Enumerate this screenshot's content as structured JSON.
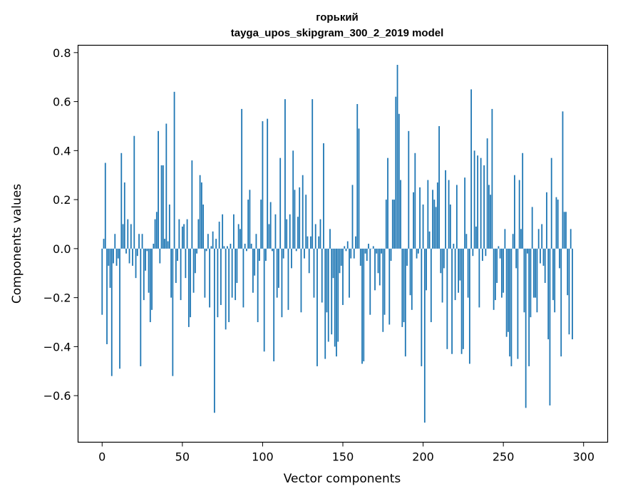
{
  "chart_data": {
    "type": "bar",
    "title": "горький",
    "subtitle": "tayga_upos_skipgram_300_2_2019 model",
    "xlabel": "Vector components",
    "ylabel": "Components values",
    "xlim": [
      -15,
      315
    ],
    "ylim": [
      -0.79,
      0.83
    ],
    "xticks": [
      0,
      50,
      100,
      150,
      200,
      250,
      300
    ],
    "xtick_labels": [
      "0",
      "50",
      "100",
      "150",
      "200",
      "250",
      "300"
    ],
    "yticks": [
      -0.6,
      -0.4,
      -0.2,
      0.0,
      0.2,
      0.4,
      0.6,
      0.8
    ],
    "ytick_labels": [
      "−0.6",
      "−0.4",
      "−0.2",
      "0.0",
      "0.2",
      "0.4",
      "0.6",
      "0.8"
    ],
    "bar_color": "#1f77b4",
    "grid": false,
    "values": [
      -0.27,
      0.04,
      0.35,
      -0.39,
      -0.07,
      -0.16,
      -0.52,
      -0.06,
      0.06,
      -0.07,
      -0.04,
      -0.49,
      0.39,
      0.1,
      0.27,
      -0.02,
      0.12,
      -0.06,
      0.1,
      -0.07,
      0.46,
      -0.12,
      -0.03,
      0.06,
      -0.48,
      0.06,
      -0.21,
      -0.09,
      -0.01,
      -0.18,
      -0.3,
      -0.25,
      0.02,
      0.12,
      0.15,
      0.48,
      -0.06,
      0.34,
      0.34,
      0.04,
      0.51,
      0.03,
      0.18,
      -0.2,
      -0.52,
      0.64,
      -0.14,
      -0.05,
      0.12,
      -0.21,
      0.09,
      0.1,
      -0.12,
      0.12,
      -0.32,
      -0.28,
      0.36,
      -0.18,
      -0.1,
      -0.02,
      0.12,
      0.3,
      0.27,
      0.18,
      -0.2,
      -0.01,
      0.06,
      -0.24,
      0.01,
      0.07,
      -0.67,
      0.04,
      -0.28,
      0.11,
      -0.23,
      0.14,
      0.01,
      -0.33,
      0.01,
      -0.3,
      0.02,
      -0.2,
      0.14,
      -0.21,
      -0.14,
      0.1,
      0.08,
      0.57,
      -0.24,
      0.02,
      -0.01,
      0.2,
      0.24,
      0.02,
      -0.18,
      -0.11,
      0.06,
      -0.3,
      -0.05,
      0.2,
      0.52,
      -0.42,
      -0.05,
      0.53,
      0.1,
      0.19,
      -0.01,
      -0.46,
      0.14,
      -0.2,
      -0.16,
      0.37,
      -0.28,
      -0.04,
      0.61,
      0.12,
      -0.25,
      0.14,
      -0.08,
      0.4,
      0.24,
      -0.01,
      0.13,
      0.25,
      -0.26,
      0.3,
      -0.04,
      0.22,
      0.05,
      -0.1,
      0.05,
      0.61,
      -0.2,
      0.1,
      -0.48,
      0.05,
      0.12,
      -0.22,
      0.43,
      -0.45,
      -0.26,
      -0.38,
      0.08,
      -0.35,
      -0.12,
      -0.4,
      -0.44,
      -0.38,
      -0.1,
      -0.07,
      -0.23,
      0.01,
      -0.01,
      0.03,
      -0.2,
      -0.04,
      0.26,
      -0.04,
      0.05,
      0.59,
      0.49,
      -0.07,
      -0.47,
      -0.46,
      -0.02,
      -0.05,
      0.02,
      -0.27,
      0.0,
      0.01,
      -0.17,
      -0.02,
      -0.1,
      -0.15,
      -0.02,
      -0.34,
      -0.27,
      0.2,
      0.37,
      -0.31,
      -0.05,
      0.2,
      0.2,
      0.62,
      0.75,
      0.55,
      0.28,
      -0.32,
      -0.3,
      -0.44,
      -0.07,
      0.48,
      -0.19,
      -0.25,
      0.23,
      0.39,
      -0.04,
      -0.02,
      0.25,
      -0.48,
      0.18,
      -0.71,
      -0.17,
      0.28,
      0.07,
      -0.3,
      0.24,
      0.2,
      0.17,
      0.27,
      0.5,
      -0.1,
      -0.22,
      -0.08,
      0.32,
      -0.41,
      0.28,
      0.18,
      -0.43,
      0.02,
      -0.21,
      0.26,
      -0.18,
      -0.13,
      -0.43,
      -0.41,
      0.29,
      0.06,
      -0.2,
      -0.47,
      0.65,
      -0.03,
      0.4,
      0.09,
      0.38,
      -0.24,
      0.37,
      -0.05,
      0.34,
      -0.03,
      0.45,
      0.26,
      0.22,
      0.57,
      -0.25,
      -0.21,
      -0.14,
      0.01,
      -0.04,
      -0.2,
      -0.18,
      0.08,
      -0.36,
      -0.34,
      -0.44,
      -0.48,
      0.06,
      0.3,
      -0.08,
      -0.45,
      0.28,
      0.08,
      0.39,
      -0.26,
      -0.65,
      -0.02,
      -0.48,
      -0.28,
      0.17,
      -0.2,
      -0.2,
      -0.26,
      0.08,
      -0.06,
      0.1,
      -0.07,
      -0.14,
      0.23,
      -0.37,
      -0.64,
      0.37,
      -0.21,
      -0.26,
      0.21,
      0.2,
      -0.08,
      -0.44,
      0.56,
      0.15,
      0.15,
      -0.19,
      -0.35,
      0.08,
      -0.37
    ]
  }
}
